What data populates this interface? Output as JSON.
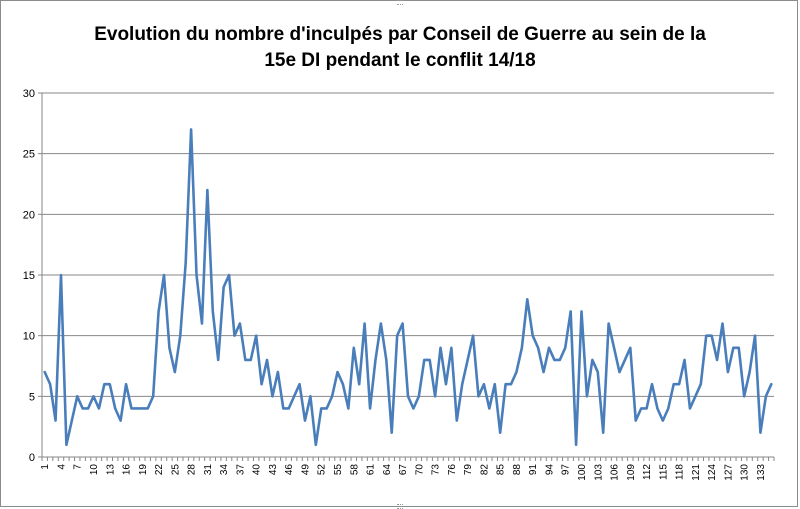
{
  "chart_data": {
    "type": "line",
    "title_line1": "Evolution du nombre d'inculpés par Conseil de Guerre au sein de la",
    "title_line2": "15e DI pendant le conflit 14/18",
    "xlabel": "",
    "ylabel": "",
    "ylim": [
      0,
      30
    ],
    "y_ticks": [
      0,
      5,
      10,
      15,
      20,
      25,
      30
    ],
    "x_tick_labels": [
      "1",
      "4",
      "7",
      "10",
      "13",
      "16",
      "19",
      "22",
      "25",
      "28",
      "31",
      "34",
      "37",
      "40",
      "43",
      "46",
      "49",
      "52",
      "55",
      "58",
      "61",
      "64",
      "67",
      "70",
      "73",
      "76",
      "79",
      "82",
      "85",
      "88",
      "91",
      "94",
      "97",
      "100",
      "103",
      "106",
      "109",
      "112",
      "115",
      "118",
      "121",
      "124",
      "127",
      "130",
      "133"
    ],
    "x_tick_step": 3,
    "grid": true,
    "legend": "none",
    "line_color": "#4a7ebb",
    "x_count": 135,
    "values": [
      7,
      6,
      3,
      15,
      1,
      3,
      5,
      4,
      4,
      5,
      4,
      6,
      6,
      4,
      3,
      6,
      4,
      4,
      4,
      4,
      5,
      12,
      15,
      9,
      7,
      10,
      16,
      27,
      15,
      11,
      22,
      12,
      8,
      14,
      15,
      10,
      11,
      8,
      8,
      10,
      6,
      8,
      5,
      7,
      4,
      4,
      5,
      6,
      3,
      5,
      1,
      4,
      4,
      5,
      7,
      6,
      4,
      9,
      6,
      11,
      4,
      8,
      11,
      8,
      2,
      10,
      11,
      5,
      4,
      5,
      8,
      8,
      5,
      9,
      6,
      9,
      3,
      6,
      8,
      10,
      5,
      6,
      4,
      6,
      2,
      6,
      6,
      7,
      9,
      13,
      10,
      9,
      7,
      9,
      8,
      8,
      9,
      12,
      1,
      12,
      5,
      8,
      7,
      2,
      11,
      9,
      7,
      8,
      9,
      3,
      4,
      4,
      6,
      4,
      3,
      4,
      6,
      6,
      8,
      4,
      5,
      6,
      10,
      10,
      8,
      11,
      7,
      9,
      9,
      5,
      7,
      10,
      2,
      5,
      6
    ]
  }
}
